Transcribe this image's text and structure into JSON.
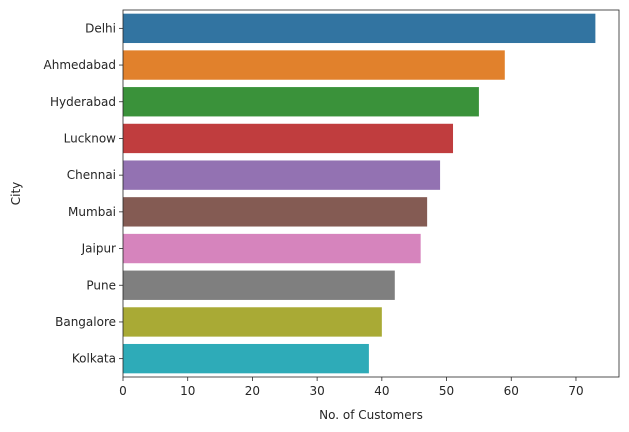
{
  "chart_data": {
    "type": "bar",
    "orientation": "horizontal",
    "title": "",
    "xlabel": "No. of Customers",
    "ylabel": "City",
    "xlim": [
      0,
      76.65
    ],
    "xticks": [
      0,
      10,
      20,
      30,
      40,
      50,
      60,
      70
    ],
    "grid": false,
    "categories": [
      "Delhi",
      "Ahmedabad",
      "Hyderabad",
      "Lucknow",
      "Chennai",
      "Mumbai",
      "Jaipur",
      "Pune",
      "Bangalore",
      "Kolkata"
    ],
    "values": [
      73,
      59,
      55,
      51,
      49,
      47,
      46,
      42,
      40,
      38
    ],
    "colors": [
      "#3274a1",
      "#e1812c",
      "#3a923a",
      "#c03d3e",
      "#9372b2",
      "#845b53",
      "#d684bd",
      "#7f7f7f",
      "#a9aa35",
      "#2eabb8"
    ]
  }
}
